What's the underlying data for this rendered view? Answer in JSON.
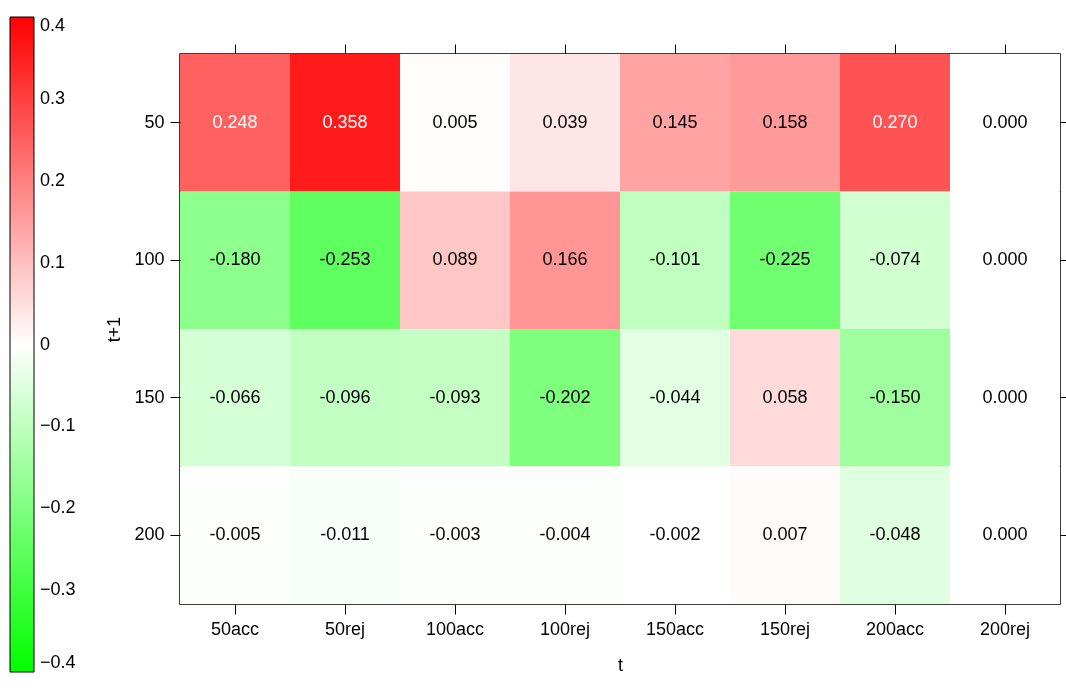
{
  "chart_data": {
    "type": "heatmap",
    "xlabel": "t",
    "ylabel": "t+1",
    "categories": [
      "50acc",
      "50rej",
      "100acc",
      "100rej",
      "150acc",
      "150rej",
      "200acc",
      "200rej"
    ],
    "y_categories": [
      "50",
      "100",
      "150",
      "200"
    ],
    "cells": [
      [
        0.248,
        0.358,
        0.005,
        0.039,
        0.145,
        0.158,
        0.27,
        0.0
      ],
      [
        -0.18,
        -0.253,
        0.089,
        0.166,
        -0.101,
        -0.225,
        -0.074,
        0.0
      ],
      [
        -0.066,
        -0.096,
        -0.093,
        -0.202,
        -0.044,
        0.058,
        -0.15,
        0.0
      ],
      [
        -0.005,
        -0.011,
        -0.003,
        -0.004,
        -0.002,
        0.007,
        -0.048,
        0.0
      ]
    ],
    "cell_labels": [
      [
        "0.248",
        "0.358",
        "0.005",
        "0.039",
        "0.145",
        "0.158",
        "0.270",
        "0.000"
      ],
      [
        "-0.180",
        "-0.253",
        "0.089",
        "0.166",
        "-0.101",
        "-0.225",
        "-0.074",
        "0.000"
      ],
      [
        "-0.066",
        "-0.096",
        "-0.093",
        "-0.202",
        "-0.044",
        "0.058",
        "-0.150",
        "0.000"
      ],
      [
        "-0.005",
        "-0.011",
        "-0.003",
        "-0.004",
        "-0.002",
        "0.007",
        "-0.048",
        "0.000"
      ]
    ],
    "clim": [
      -0.4,
      0.4
    ],
    "cticks": [
      -0.4,
      -0.3,
      -0.2,
      -0.1,
      0,
      0.1,
      0.2,
      0.3,
      0.4
    ],
    "data_labels": true
  }
}
